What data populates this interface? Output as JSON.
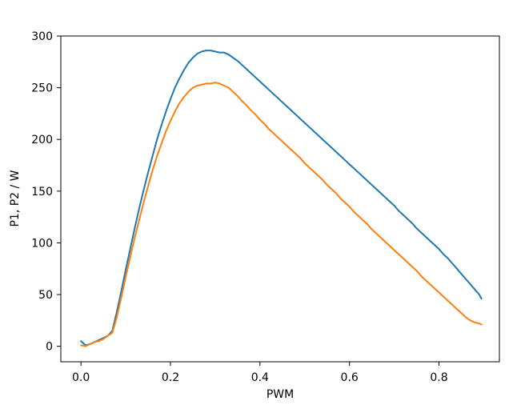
{
  "chart_data": {
    "type": "line",
    "title": "",
    "xlabel": "PWM",
    "ylabel": "P1, P2 / W",
    "xlim": [
      -0.045,
      0.935
    ],
    "ylim": [
      -15,
      300
    ],
    "grid": false,
    "legend": "none",
    "x_ticks": [
      {
        "value": 0.0,
        "label": "0.0"
      },
      {
        "value": 0.2,
        "label": "0.2"
      },
      {
        "value": 0.4,
        "label": "0.4"
      },
      {
        "value": 0.6,
        "label": "0.6"
      },
      {
        "value": 0.8,
        "label": "0.8"
      }
    ],
    "y_ticks": [
      {
        "value": 0,
        "label": "0"
      },
      {
        "value": 50,
        "label": "50"
      },
      {
        "value": 100,
        "label": "100"
      },
      {
        "value": 150,
        "label": "150"
      },
      {
        "value": 200,
        "label": "200"
      },
      {
        "value": 250,
        "label": "250"
      },
      {
        "value": 300,
        "label": "300"
      }
    ],
    "series": [
      {
        "color": "#1f77b4",
        "points": [
          [
            0.0,
            5
          ],
          [
            0.01,
            1
          ],
          [
            0.02,
            2
          ],
          [
            0.03,
            4
          ],
          [
            0.04,
            6
          ],
          [
            0.05,
            8
          ],
          [
            0.06,
            10
          ],
          [
            0.07,
            15
          ],
          [
            0.08,
            33
          ],
          [
            0.09,
            53
          ],
          [
            0.1,
            74
          ],
          [
            0.11,
            94
          ],
          [
            0.12,
            114
          ],
          [
            0.13,
            133
          ],
          [
            0.14,
            151
          ],
          [
            0.15,
            168
          ],
          [
            0.16,
            184
          ],
          [
            0.17,
            200
          ],
          [
            0.18,
            214
          ],
          [
            0.19,
            227
          ],
          [
            0.2,
            239
          ],
          [
            0.21,
            250
          ],
          [
            0.22,
            259
          ],
          [
            0.23,
            267
          ],
          [
            0.24,
            274
          ],
          [
            0.25,
            279
          ],
          [
            0.26,
            283
          ],
          [
            0.27,
            285
          ],
          [
            0.28,
            286
          ],
          [
            0.29,
            286
          ],
          [
            0.3,
            285
          ],
          [
            0.31,
            284
          ],
          [
            0.32,
            284
          ],
          [
            0.33,
            282
          ],
          [
            0.34,
            279
          ],
          [
            0.35,
            276
          ],
          [
            0.36,
            272
          ],
          [
            0.37,
            268
          ],
          [
            0.38,
            264
          ],
          [
            0.39,
            260
          ],
          [
            0.4,
            256
          ],
          [
            0.41,
            252
          ],
          [
            0.42,
            248
          ],
          [
            0.43,
            244
          ],
          [
            0.44,
            240
          ],
          [
            0.45,
            236
          ],
          [
            0.46,
            232
          ],
          [
            0.47,
            228
          ],
          [
            0.48,
            224
          ],
          [
            0.49,
            220
          ],
          [
            0.5,
            216
          ],
          [
            0.51,
            212
          ],
          [
            0.52,
            208
          ],
          [
            0.53,
            204
          ],
          [
            0.54,
            200
          ],
          [
            0.55,
            196
          ],
          [
            0.56,
            192
          ],
          [
            0.57,
            188
          ],
          [
            0.58,
            184
          ],
          [
            0.59,
            180
          ],
          [
            0.6,
            176
          ],
          [
            0.61,
            172
          ],
          [
            0.62,
            168
          ],
          [
            0.63,
            164
          ],
          [
            0.64,
            160
          ],
          [
            0.65,
            156
          ],
          [
            0.66,
            152
          ],
          [
            0.67,
            148
          ],
          [
            0.68,
            144
          ],
          [
            0.69,
            140
          ],
          [
            0.7,
            136
          ],
          [
            0.71,
            131
          ],
          [
            0.72,
            127
          ],
          [
            0.73,
            123
          ],
          [
            0.74,
            119
          ],
          [
            0.75,
            114
          ],
          [
            0.76,
            110
          ],
          [
            0.77,
            106
          ],
          [
            0.78,
            102
          ],
          [
            0.79,
            98
          ],
          [
            0.8,
            94
          ],
          [
            0.81,
            89
          ],
          [
            0.82,
            85
          ],
          [
            0.83,
            80
          ],
          [
            0.84,
            75
          ],
          [
            0.85,
            70
          ],
          [
            0.86,
            65
          ],
          [
            0.87,
            60
          ],
          [
            0.88,
            55
          ],
          [
            0.89,
            50
          ],
          [
            0.895,
            46
          ]
        ]
      },
      {
        "color": "#ff7f0e",
        "points": [
          [
            0.0,
            1
          ],
          [
            0.01,
            0
          ],
          [
            0.02,
            2
          ],
          [
            0.03,
            4
          ],
          [
            0.04,
            5
          ],
          [
            0.05,
            7
          ],
          [
            0.06,
            10
          ],
          [
            0.07,
            13
          ],
          [
            0.08,
            28
          ],
          [
            0.09,
            47
          ],
          [
            0.1,
            67
          ],
          [
            0.11,
            86
          ],
          [
            0.12,
            105
          ],
          [
            0.13,
            122
          ],
          [
            0.14,
            139
          ],
          [
            0.15,
            155
          ],
          [
            0.16,
            170
          ],
          [
            0.17,
            184
          ],
          [
            0.18,
            196
          ],
          [
            0.19,
            208
          ],
          [
            0.2,
            218
          ],
          [
            0.21,
            227
          ],
          [
            0.22,
            235
          ],
          [
            0.23,
            241
          ],
          [
            0.24,
            246
          ],
          [
            0.25,
            250
          ],
          [
            0.26,
            252
          ],
          [
            0.27,
            253
          ],
          [
            0.28,
            254
          ],
          [
            0.29,
            254
          ],
          [
            0.3,
            255
          ],
          [
            0.31,
            254
          ],
          [
            0.32,
            252
          ],
          [
            0.33,
            250
          ],
          [
            0.34,
            246
          ],
          [
            0.35,
            242
          ],
          [
            0.36,
            237
          ],
          [
            0.37,
            233
          ],
          [
            0.38,
            228
          ],
          [
            0.39,
            224
          ],
          [
            0.4,
            219
          ],
          [
            0.41,
            215
          ],
          [
            0.42,
            210
          ],
          [
            0.43,
            206
          ],
          [
            0.44,
            202
          ],
          [
            0.45,
            198
          ],
          [
            0.46,
            194
          ],
          [
            0.47,
            190
          ],
          [
            0.48,
            186
          ],
          [
            0.49,
            182
          ],
          [
            0.5,
            177
          ],
          [
            0.51,
            173
          ],
          [
            0.52,
            169
          ],
          [
            0.53,
            165
          ],
          [
            0.54,
            161
          ],
          [
            0.55,
            156
          ],
          [
            0.56,
            152
          ],
          [
            0.57,
            148
          ],
          [
            0.58,
            143
          ],
          [
            0.59,
            139
          ],
          [
            0.6,
            135
          ],
          [
            0.61,
            130
          ],
          [
            0.62,
            126
          ],
          [
            0.63,
            122
          ],
          [
            0.64,
            118
          ],
          [
            0.65,
            113
          ],
          [
            0.66,
            109
          ],
          [
            0.67,
            105
          ],
          [
            0.68,
            101
          ],
          [
            0.69,
            97
          ],
          [
            0.7,
            93
          ],
          [
            0.71,
            89
          ],
          [
            0.72,
            85
          ],
          [
            0.73,
            81
          ],
          [
            0.74,
            77
          ],
          [
            0.75,
            73
          ],
          [
            0.76,
            68
          ],
          [
            0.77,
            64
          ],
          [
            0.78,
            60
          ],
          [
            0.79,
            56
          ],
          [
            0.8,
            52
          ],
          [
            0.81,
            48
          ],
          [
            0.82,
            44
          ],
          [
            0.83,
            40
          ],
          [
            0.84,
            36
          ],
          [
            0.85,
            32
          ],
          [
            0.86,
            28
          ],
          [
            0.87,
            25
          ],
          [
            0.88,
            23
          ],
          [
            0.89,
            22
          ],
          [
            0.895,
            21
          ]
        ]
      }
    ]
  }
}
